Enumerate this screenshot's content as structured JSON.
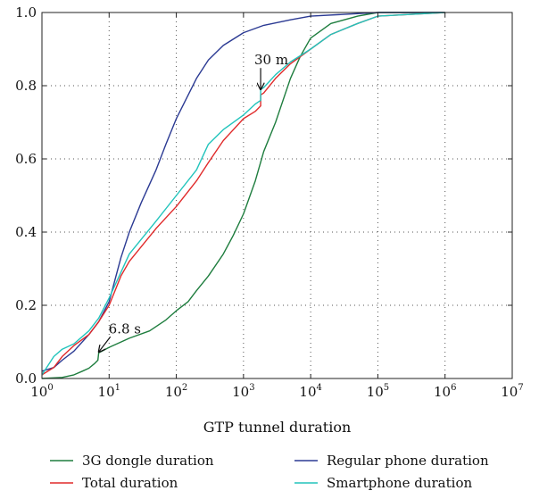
{
  "chart_data": {
    "type": "line",
    "title": "",
    "xlabel": "GTP tunnel duration",
    "ylabel": "",
    "x_scale": "log",
    "xlim": [
      1,
      10000000
    ],
    "ylim": [
      0,
      1
    ],
    "grid": true,
    "x_ticks": [
      {
        "value": 1,
        "base": "10",
        "exp": "0"
      },
      {
        "value": 10,
        "base": "10",
        "exp": "1"
      },
      {
        "value": 100,
        "base": "10",
        "exp": "2"
      },
      {
        "value": 1000,
        "base": "10",
        "exp": "3"
      },
      {
        "value": 10000,
        "base": "10",
        "exp": "4"
      },
      {
        "value": 100000,
        "base": "10",
        "exp": "5"
      },
      {
        "value": 1000000,
        "base": "10",
        "exp": "6"
      },
      {
        "value": 10000000,
        "base": "10",
        "exp": "7"
      }
    ],
    "y_ticks": [
      {
        "value": 0,
        "label": "0.0"
      },
      {
        "value": 0.2,
        "label": "0.2"
      },
      {
        "value": 0.4,
        "label": "0.4"
      },
      {
        "value": 0.6,
        "label": "0.6"
      },
      {
        "value": 0.8,
        "label": "0.8"
      },
      {
        "value": 1,
        "label": "1.0"
      }
    ],
    "legend_position": "bottom",
    "series": [
      {
        "name": "3G dongle duration",
        "color": "#1e7d3e",
        "points": [
          [
            1,
            0
          ],
          [
            2,
            0.003
          ],
          [
            3,
            0.01
          ],
          [
            4,
            0.02
          ],
          [
            5,
            0.028
          ],
          [
            6,
            0.04
          ],
          [
            6.8,
            0.05
          ],
          [
            7,
            0.07
          ],
          [
            10,
            0.085
          ],
          [
            20,
            0.11
          ],
          [
            40,
            0.13
          ],
          [
            70,
            0.16
          ],
          [
            100,
            0.185
          ],
          [
            150,
            0.21
          ],
          [
            200,
            0.24
          ],
          [
            300,
            0.28
          ],
          [
            500,
            0.34
          ],
          [
            700,
            0.39
          ],
          [
            1000,
            0.45
          ],
          [
            1500,
            0.54
          ],
          [
            2000,
            0.62
          ],
          [
            3000,
            0.7
          ],
          [
            5000,
            0.82
          ],
          [
            7000,
            0.88
          ],
          [
            10000,
            0.93
          ],
          [
            20000,
            0.97
          ],
          [
            50000,
            0.99
          ],
          [
            100000,
            1
          ],
          [
            1000000,
            1
          ]
        ]
      },
      {
        "name": "Regular phone duration",
        "color": "#2b3a93",
        "points": [
          [
            1,
            0.02
          ],
          [
            1.5,
            0.03
          ],
          [
            2,
            0.05
          ],
          [
            3,
            0.075
          ],
          [
            5,
            0.12
          ],
          [
            7,
            0.155
          ],
          [
            10,
            0.21
          ],
          [
            15,
            0.33
          ],
          [
            20,
            0.4
          ],
          [
            30,
            0.48
          ],
          [
            50,
            0.57
          ],
          [
            70,
            0.64
          ],
          [
            100,
            0.71
          ],
          [
            200,
            0.82
          ],
          [
            300,
            0.87
          ],
          [
            500,
            0.91
          ],
          [
            1000,
            0.945
          ],
          [
            2000,
            0.965
          ],
          [
            5000,
            0.98
          ],
          [
            10000,
            0.99
          ],
          [
            100000,
            1
          ],
          [
            1000000,
            1
          ]
        ]
      },
      {
        "name": "Total duration",
        "color": "#e02a2a",
        "points": [
          [
            1,
            0.01
          ],
          [
            1.5,
            0.03
          ],
          [
            2,
            0.06
          ],
          [
            3,
            0.09
          ],
          [
            5,
            0.12
          ],
          [
            7,
            0.155
          ],
          [
            10,
            0.2
          ],
          [
            15,
            0.28
          ],
          [
            20,
            0.32
          ],
          [
            30,
            0.36
          ],
          [
            50,
            0.41
          ],
          [
            100,
            0.47
          ],
          [
            200,
            0.54
          ],
          [
            300,
            0.59
          ],
          [
            500,
            0.65
          ],
          [
            1000,
            0.71
          ],
          [
            1500,
            0.73
          ],
          [
            1800,
            0.745
          ],
          [
            1800,
            0.775
          ],
          [
            2000,
            0.78
          ],
          [
            3000,
            0.82
          ],
          [
            5000,
            0.86
          ],
          [
            10000,
            0.9
          ],
          [
            20000,
            0.94
          ],
          [
            50000,
            0.97
          ],
          [
            100000,
            0.99
          ],
          [
            1000000,
            1
          ]
        ]
      },
      {
        "name": "Smartphone duration",
        "color": "#22c4bc",
        "points": [
          [
            1,
            0.01
          ],
          [
            1.5,
            0.06
          ],
          [
            2,
            0.08
          ],
          [
            3,
            0.095
          ],
          [
            5,
            0.13
          ],
          [
            7,
            0.165
          ],
          [
            10,
            0.22
          ],
          [
            15,
            0.29
          ],
          [
            20,
            0.34
          ],
          [
            30,
            0.38
          ],
          [
            50,
            0.43
          ],
          [
            100,
            0.5
          ],
          [
            200,
            0.57
          ],
          [
            300,
            0.64
          ],
          [
            500,
            0.68
          ],
          [
            1000,
            0.72
          ],
          [
            1500,
            0.75
          ],
          [
            1800,
            0.76
          ],
          [
            1800,
            0.79
          ],
          [
            2000,
            0.795
          ],
          [
            3000,
            0.83
          ],
          [
            5000,
            0.865
          ],
          [
            10000,
            0.9
          ],
          [
            20000,
            0.94
          ],
          [
            50000,
            0.97
          ],
          [
            100000,
            0.99
          ],
          [
            1000000,
            1
          ]
        ]
      }
    ],
    "annotations": [
      {
        "text": "30 m",
        "x": 1800,
        "y": 0.78
      },
      {
        "text": "6.8 s",
        "x": 6.8,
        "y": 0.07
      }
    ]
  }
}
